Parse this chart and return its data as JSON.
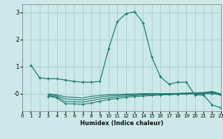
{
  "xlabel": "Humidex (Indice chaleur)",
  "background_color": "#cce8e8",
  "grid_color": "#aacccc",
  "line_color": "#1a7a6e",
  "xlim": [
    0,
    23
  ],
  "ylim": [
    -0.65,
    3.3
  ],
  "yticks": [
    0,
    1,
    2,
    3
  ],
  "ytick_labels": [
    "-0",
    "1",
    "2",
    "3"
  ],
  "xticks": [
    0,
    1,
    2,
    3,
    4,
    5,
    6,
    7,
    8,
    9,
    10,
    11,
    12,
    13,
    14,
    15,
    16,
    17,
    18,
    19,
    20,
    21,
    22,
    23
  ],
  "line1_x": [
    1,
    2,
    3,
    4,
    5,
    6,
    7,
    8,
    9,
    10,
    11,
    12,
    13,
    14,
    15,
    16,
    17,
    18,
    19,
    20,
    21,
    22,
    23
  ],
  "line1_y": [
    1.05,
    0.58,
    0.55,
    0.55,
    0.5,
    0.45,
    0.42,
    0.42,
    0.45,
    1.65,
    2.65,
    2.95,
    3.02,
    2.62,
    1.35,
    0.62,
    0.35,
    0.42,
    0.42,
    -0.05,
    -0.05,
    -0.42,
    -0.52
  ],
  "line2_x": [
    3,
    4,
    5,
    6,
    7,
    8,
    9,
    10,
    11,
    12,
    13,
    14,
    15,
    16,
    17,
    18,
    19,
    20,
    21,
    22,
    23
  ],
  "line2_y": [
    -0.1,
    -0.15,
    -0.38,
    -0.38,
    -0.4,
    -0.35,
    -0.28,
    -0.22,
    -0.18,
    -0.14,
    -0.11,
    -0.09,
    -0.07,
    -0.05,
    -0.04,
    -0.03,
    -0.02,
    -0.01,
    -0.01,
    0.0,
    -0.05
  ],
  "line3_x": [
    3,
    4,
    5,
    6,
    7,
    8,
    9,
    10,
    11,
    12,
    13,
    14,
    15,
    16,
    17,
    18,
    19,
    20,
    21,
    22,
    23
  ],
  "line3_y": [
    -0.07,
    -0.12,
    -0.3,
    -0.3,
    -0.32,
    -0.26,
    -0.2,
    -0.16,
    -0.12,
    -0.09,
    -0.07,
    -0.05,
    -0.04,
    -0.03,
    -0.02,
    -0.01,
    -0.0,
    0.01,
    0.01,
    0.03,
    -0.04
  ],
  "line4_x": [
    3,
    4,
    5,
    6,
    7,
    8,
    9,
    10,
    11,
    12,
    13,
    14,
    15,
    16,
    17,
    18,
    19,
    20,
    21,
    22,
    23
  ],
  "line4_y": [
    -0.04,
    -0.08,
    -0.2,
    -0.22,
    -0.24,
    -0.18,
    -0.13,
    -0.09,
    -0.07,
    -0.05,
    -0.04,
    -0.02,
    -0.01,
    -0.01,
    -0.01,
    0.0,
    0.01,
    0.02,
    0.02,
    0.06,
    -0.02
  ],
  "line5_x": [
    3,
    4,
    5,
    6,
    7,
    8,
    9,
    10,
    11,
    12,
    13,
    14,
    15,
    16,
    17,
    18,
    19,
    20,
    21,
    22,
    23
  ],
  "line5_y": [
    -0.01,
    -0.04,
    -0.12,
    -0.14,
    -0.16,
    -0.1,
    -0.07,
    -0.04,
    -0.03,
    -0.02,
    -0.01,
    -0.0,
    -0.0,
    0.0,
    0.0,
    0.01,
    0.02,
    0.03,
    0.04,
    0.08,
    -0.01
  ]
}
